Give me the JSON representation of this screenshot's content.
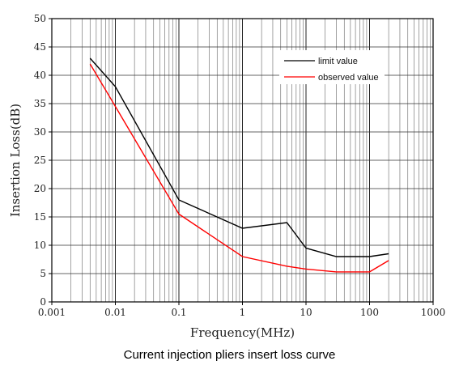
{
  "caption": "Current injection pliers insert loss curve",
  "chart_data": {
    "type": "line",
    "xlabel": "Frequency(MHz)",
    "ylabel": "Insertion Loss(dB)",
    "xscale": "log",
    "xlim": [
      0.001,
      1000
    ],
    "ylim": [
      0,
      50
    ],
    "grid": true,
    "legend_position": "top-right",
    "x_ticks": [
      "0.001",
      "0.01",
      "0.1",
      "1",
      "10",
      "100",
      "1000"
    ],
    "y_ticks": [
      "0",
      "5",
      "10",
      "15",
      "20",
      "25",
      "30",
      "35",
      "40",
      "45",
      "50"
    ],
    "series": [
      {
        "name": "limit value",
        "color": "#000000",
        "x": [
          0.004,
          0.01,
          0.1,
          1,
          5,
          10,
          30,
          100,
          200
        ],
        "y": [
          43,
          38,
          18,
          13,
          14,
          9.5,
          8,
          8,
          8.5
        ]
      },
      {
        "name": "observed value",
        "color": "#ff0000",
        "x": [
          0.004,
          0.01,
          0.1,
          1,
          5,
          10,
          30,
          100,
          200
        ],
        "y": [
          42,
          34.5,
          15.5,
          8,
          6.3,
          5.8,
          5.3,
          5.3,
          7.3
        ]
      }
    ]
  }
}
